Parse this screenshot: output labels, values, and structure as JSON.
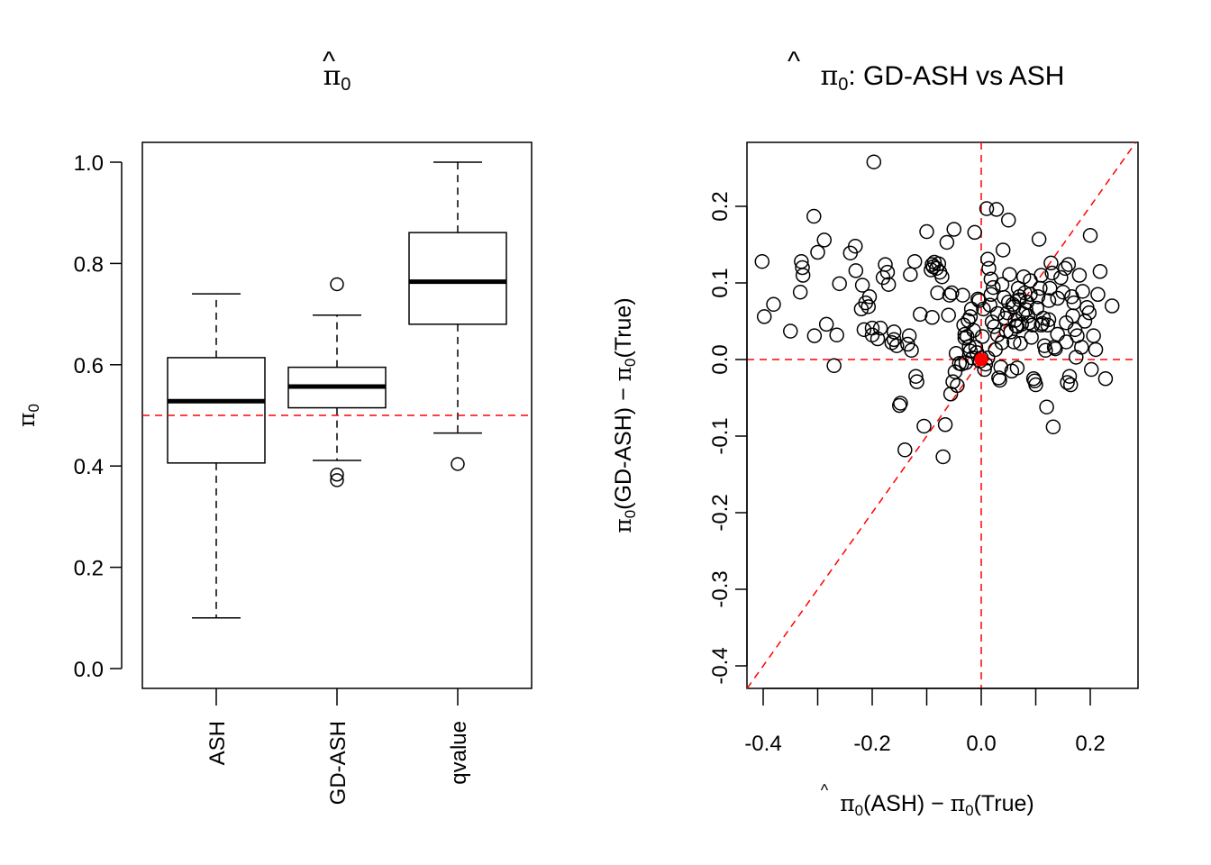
{
  "chart_data": [
    {
      "type": "box",
      "title": "π̂0",
      "title_symbol": "π",
      "title_subscript": "0",
      "xlabel": "",
      "ylabel": "π̂0",
      "ylim": [
        0.0,
        1.0
      ],
      "yticks": [
        0.0,
        0.2,
        0.4,
        0.6,
        0.8,
        1.0
      ],
      "ytick_labels": [
        "0.0",
        "0.2",
        "0.4",
        "0.6",
        "0.8",
        "1.0"
      ],
      "categories": [
        "ASH",
        "GD-ASH",
        "qvalue"
      ],
      "boxes": [
        {
          "name": "ASH",
          "whisker_low": 0.1,
          "q1": 0.406,
          "median": 0.528,
          "q3": 0.614,
          "whisker_high": 0.74,
          "outliers": []
        },
        {
          "name": "GD-ASH",
          "whisker_low": 0.411,
          "q1": 0.515,
          "median": 0.557,
          "q3": 0.595,
          "whisker_high": 0.698,
          "outliers": [
            0.759,
            0.383,
            0.372
          ]
        },
        {
          "name": "qvalue",
          "whisker_low": 0.465,
          "q1": 0.68,
          "median": 0.764,
          "q3": 0.861,
          "whisker_high": 1.0,
          "outliers": [
            0.404
          ]
        }
      ],
      "reference_line": {
        "y": 0.5,
        "color": "#ff0000",
        "style": "dashed"
      },
      "grid": false
    },
    {
      "type": "scatter",
      "title": "π̂0: GD-ASH vs ASH",
      "title_symbol": "π",
      "title_subscript": "0",
      "title_rest": ": GD-ASH vs ASH",
      "xlabel": "π̂0(ASH) − π0(True)",
      "xlabel_parts": {
        "a": "(ASH)",
        "minus": " − ",
        "b": "(True)"
      },
      "ylabel": "π̂0(GD-ASH) − π0(True)",
      "ylabel_parts": {
        "a": "(GD-ASH)",
        "minus": " − ",
        "b": "(True)"
      },
      "xlim": [
        -0.42,
        0.28
      ],
      "ylim": [
        -0.43,
        0.285
      ],
      "xticks": [
        -0.4,
        -0.3,
        -0.2,
        -0.1,
        0.0,
        0.1,
        0.2
      ],
      "xtick_labels": [
        "-0.4",
        "",
        "-0.2",
        "",
        "0.0",
        "",
        "0.2"
      ],
      "yticks": [
        -0.4,
        -0.3,
        -0.2,
        -0.1,
        0.0,
        0.1,
        0.2
      ],
      "ytick_labels": [
        "-0.4",
        "-0.3",
        "-0.2",
        "-0.1",
        "0.0",
        "0.1",
        "0.2"
      ],
      "reference_lines": [
        {
          "type": "h",
          "value": 0.0,
          "color": "#ff0000",
          "style": "dashed"
        },
        {
          "type": "v",
          "value": 0.0,
          "color": "#ff0000",
          "style": "dashed"
        },
        {
          "type": "abline",
          "intercept": 0,
          "slope": 1,
          "color": "#ff0000",
          "style": "dashed"
        }
      ],
      "highlight_point": {
        "x": 0.0,
        "y": 0.0,
        "color": "#ff0000"
      },
      "points": [
        [
          -0.402,
          0.128
        ],
        [
          -0.398,
          0.056
        ],
        [
          -0.381,
          0.072
        ],
        [
          -0.35,
          0.037
        ],
        [
          -0.332,
          0.088
        ],
        [
          -0.33,
          0.128
        ],
        [
          -0.328,
          0.12
        ],
        [
          -0.327,
          0.11
        ],
        [
          -0.307,
          0.187
        ],
        [
          -0.306,
          0.031
        ],
        [
          -0.3,
          0.14
        ],
        [
          -0.288,
          0.156
        ],
        [
          -0.284,
          0.046
        ],
        [
          -0.27,
          -0.008
        ],
        [
          -0.265,
          0.032
        ],
        [
          -0.26,
          0.099
        ],
        [
          -0.24,
          0.139
        ],
        [
          -0.231,
          0.148
        ],
        [
          -0.23,
          0.116
        ],
        [
          -0.22,
          0.066
        ],
        [
          -0.218,
          0.097
        ],
        [
          -0.215,
          0.039
        ],
        [
          -0.212,
          0.074
        ],
        [
          -0.207,
          0.069
        ],
        [
          -0.205,
          0.082
        ],
        [
          -0.2,
          0.041
        ],
        [
          -0.2,
          0.032
        ],
        [
          -0.197,
          0.258
        ],
        [
          -0.19,
          0.027
        ],
        [
          -0.185,
          0.041
        ],
        [
          -0.18,
          0.107
        ],
        [
          -0.176,
          0.124
        ],
        [
          -0.172,
          0.114
        ],
        [
          -0.17,
          0.098
        ],
        [
          -0.164,
          0.022
        ],
        [
          -0.16,
          0.036
        ],
        [
          -0.16,
          0.026
        ],
        [
          -0.155,
          0.018
        ],
        [
          -0.15,
          -0.06
        ],
        [
          -0.148,
          -0.057
        ],
        [
          -0.14,
          -0.118
        ],
        [
          -0.135,
          0.02
        ],
        [
          -0.132,
          0.031
        ],
        [
          -0.13,
          0.111
        ],
        [
          -0.128,
          0.012
        ],
        [
          -0.122,
          0.128
        ],
        [
          -0.12,
          -0.022
        ],
        [
          -0.118,
          -0.029
        ],
        [
          -0.112,
          0.059
        ],
        [
          -0.105,
          -0.087
        ],
        [
          -0.1,
          0.167
        ],
        [
          -0.092,
          0.117
        ],
        [
          -0.09,
          0.124
        ],
        [
          -0.088,
          0.121
        ],
        [
          -0.086,
          0.127
        ],
        [
          -0.082,
          0.119
        ],
        [
          -0.08,
          0.087
        ],
        [
          -0.078,
          0.125
        ],
        [
          -0.076,
          0.114
        ],
        [
          -0.072,
          0.108
        ],
        [
          -0.07,
          -0.127
        ],
        [
          -0.066,
          -0.085
        ],
        [
          -0.063,
          0.153
        ],
        [
          -0.06,
          0.058
        ],
        [
          -0.058,
          0.084
        ],
        [
          -0.056,
          -0.045
        ],
        [
          -0.054,
          0.087
        ],
        [
          -0.052,
          -0.029
        ],
        [
          -0.05,
          0.17
        ],
        [
          -0.048,
          -0.016
        ],
        [
          -0.046,
          0.008
        ],
        [
          -0.044,
          -0.034
        ],
        [
          -0.04,
          -0.005
        ],
        [
          -0.036,
          -0.006
        ],
        [
          -0.034,
          0.084
        ],
        [
          -0.032,
          0.045
        ],
        [
          -0.03,
          0.028
        ],
        [
          -0.028,
          -0.004
        ],
        [
          -0.026,
          0.03
        ],
        [
          -0.024,
          0.051
        ],
        [
          -0.022,
          0.017
        ],
        [
          -0.02,
          0.056
        ],
        [
          -0.018,
          0.066
        ],
        [
          -0.016,
          0.002
        ],
        [
          -0.014,
          0.038
        ],
        [
          -0.012,
          0.166
        ],
        [
          -0.01,
          0.016
        ],
        [
          -0.008,
          0.009
        ],
        [
          -0.006,
          0.079
        ],
        [
          -0.004,
          0.077
        ],
        [
          -0.002,
          -0.002
        ],
        [
          0.0,
          0.002
        ],
        [
          0.002,
          0.03
        ],
        [
          0.004,
          0.066
        ],
        [
          0.006,
          -0.013
        ],
        [
          0.008,
          -0.006
        ],
        [
          0.01,
          0.197
        ],
        [
          0.012,
          0.131
        ],
        [
          0.014,
          0.119
        ],
        [
          0.016,
          0.071
        ],
        [
          0.018,
          0.105
        ],
        [
          0.02,
          0.049
        ],
        [
          0.022,
          0.094
        ],
        [
          0.024,
          0.043
        ],
        [
          0.026,
          0.013
        ],
        [
          0.028,
          0.196
        ],
        [
          0.03,
          0.032
        ],
        [
          0.032,
          -0.024
        ],
        [
          0.034,
          -0.027
        ],
        [
          0.036,
          -0.01
        ],
        [
          0.038,
          0.022
        ],
        [
          0.04,
          0.143
        ],
        [
          0.042,
          0.081
        ],
        [
          0.044,
          0.054
        ],
        [
          0.046,
          0.037
        ],
        [
          0.048,
          0.061
        ],
        [
          0.05,
          0.182
        ],
        [
          0.052,
          0.111
        ],
        [
          0.054,
          0.036
        ],
        [
          0.056,
          -0.015
        ],
        [
          0.058,
          0.072
        ],
        [
          0.06,
          0.069
        ],
        [
          0.062,
          0.051
        ],
        [
          0.064,
          0.044
        ],
        [
          0.066,
          -0.011
        ],
        [
          0.068,
          0.093
        ],
        [
          0.07,
          0.078
        ],
        [
          0.072,
          0.021
        ],
        [
          0.074,
          0.046
        ],
        [
          0.076,
          0.06
        ],
        [
          0.078,
          0.108
        ],
        [
          0.08,
          0.087
        ],
        [
          0.082,
          0.065
        ],
        [
          0.084,
          0.075
        ],
        [
          0.086,
          0.057
        ],
        [
          0.088,
          0.048
        ],
        [
          0.09,
          0.103
        ],
        [
          0.092,
          0.029
        ],
        [
          0.094,
          0.045
        ],
        [
          0.096,
          -0.025
        ],
        [
          0.098,
          -0.028
        ],
        [
          0.1,
          -0.033
        ],
        [
          0.102,
          0.067
        ],
        [
          0.104,
          0.082
        ],
        [
          0.106,
          0.157
        ],
        [
          0.108,
          0.093
        ],
        [
          0.11,
          0.11
        ],
        [
          0.112,
          0.047
        ],
        [
          0.114,
          0.054
        ],
        [
          0.116,
          0.018
        ],
        [
          0.118,
          0.012
        ],
        [
          0.12,
          -0.062
        ],
        [
          0.122,
          0.045
        ],
        [
          0.124,
          0.077
        ],
        [
          0.126,
          0.093
        ],
        [
          0.128,
          0.126
        ],
        [
          0.13,
          0.113
        ],
        [
          0.132,
          -0.088
        ],
        [
          0.134,
          0.016
        ],
        [
          0.136,
          0.014
        ],
        [
          0.14,
          0.033
        ],
        [
          0.146,
          0.107
        ],
        [
          0.15,
          0.088
        ],
        [
          0.154,
          0.119
        ],
        [
          0.156,
          0.023
        ],
        [
          0.158,
          -0.03
        ],
        [
          0.16,
          0.124
        ],
        [
          0.162,
          -0.022
        ],
        [
          0.164,
          -0.033
        ],
        [
          0.166,
          0.082
        ],
        [
          0.168,
          0.057
        ],
        [
          0.17,
          0.074
        ],
        [
          0.172,
          0.039
        ],
        [
          0.174,
          0.003
        ],
        [
          0.176,
          0.031
        ],
        [
          0.18,
          0.11
        ],
        [
          0.184,
          0.016
        ],
        [
          0.186,
          0.089
        ],
        [
          0.19,
          0.05
        ],
        [
          0.194,
          0.068
        ],
        [
          0.198,
          0.061
        ],
        [
          0.2,
          0.162
        ],
        [
          0.202,
          -0.013
        ],
        [
          0.206,
          0.031
        ],
        [
          0.21,
          0.013
        ],
        [
          0.214,
          0.085
        ],
        [
          0.218,
          0.115
        ],
        [
          0.228,
          -0.025
        ],
        [
          0.24,
          0.07
        ],
        [
          -0.09,
          0.055
        ],
        [
          -0.02,
          0.011
        ],
        [
          0.03,
          0.06
        ],
        [
          0.05,
          0.075
        ],
        [
          0.07,
          0.082
        ],
        [
          0.09,
          0.085
        ],
        [
          0.11,
          0.045
        ],
        [
          0.14,
          0.08
        ],
        [
          0.018,
          0.085
        ],
        [
          0.066,
          0.043
        ],
        [
          0.012,
          0.002
        ],
        [
          -0.03,
          0.033
        ],
        [
          0.124,
          0.052
        ],
        [
          0.06,
          0.023
        ],
        [
          0.156,
          0.048
        ],
        [
          0.038,
          0.098
        ]
      ],
      "grid": false
    }
  ]
}
